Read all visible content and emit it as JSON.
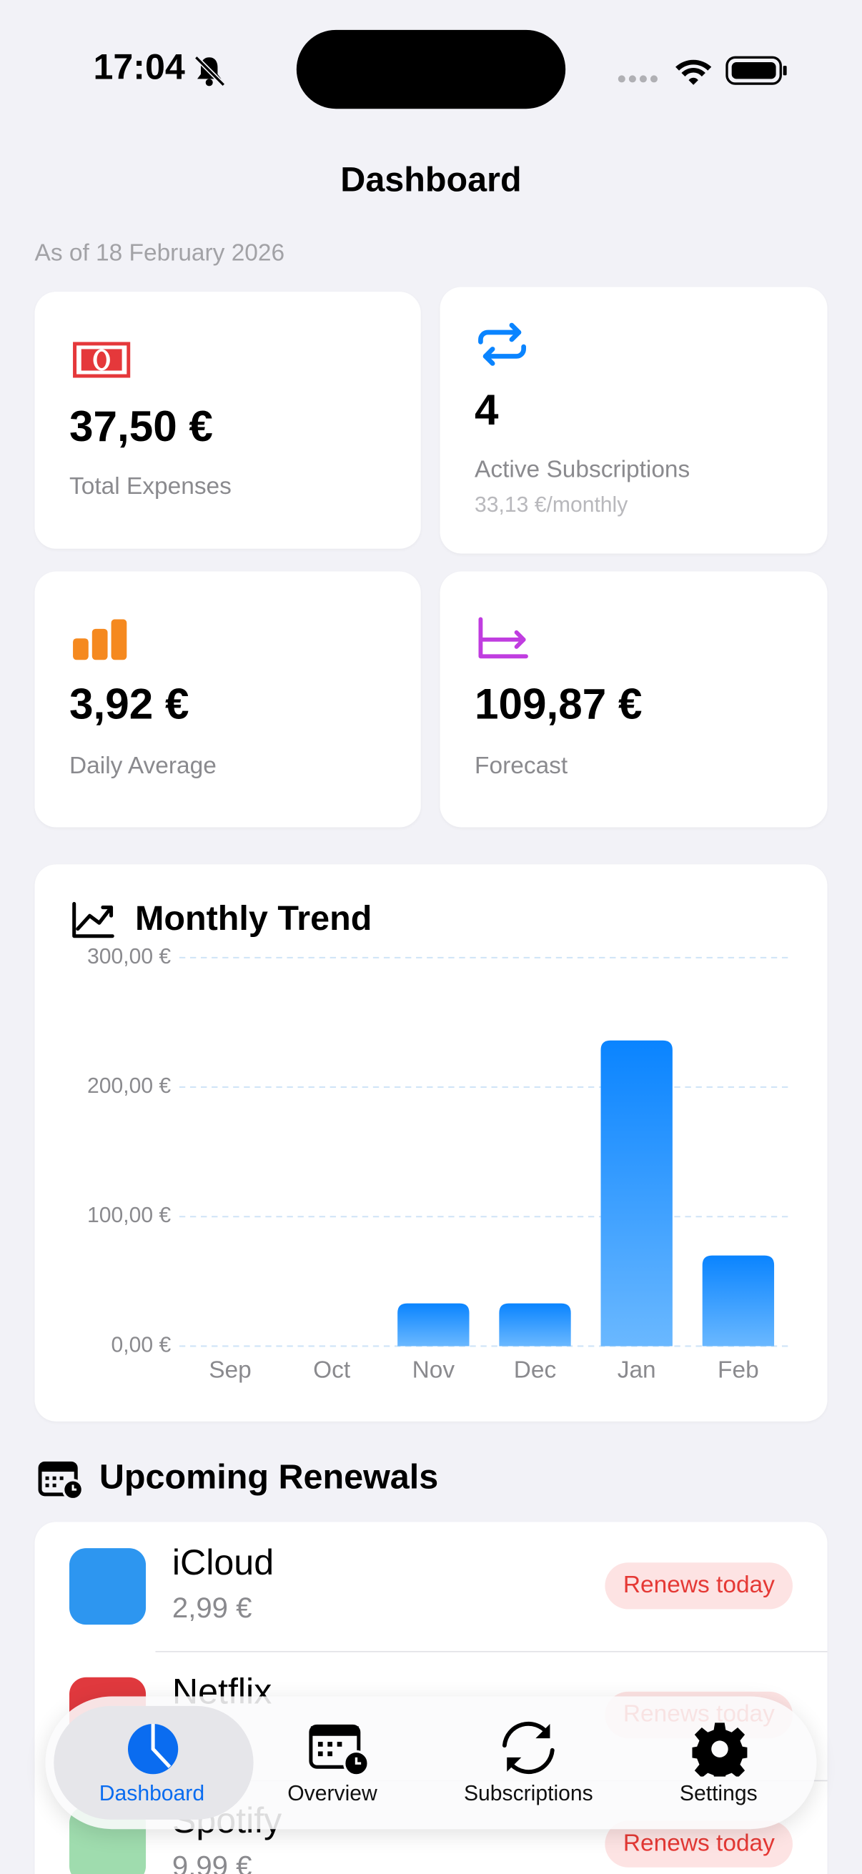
{
  "status_bar": {
    "time": "17:04"
  },
  "header": {
    "title": "Dashboard",
    "date": "As of 18 February 2026"
  },
  "stats": [
    {
      "value": "37,50 €",
      "label": "Total Expenses"
    },
    {
      "value": "4",
      "label": "Active Subscriptions",
      "note": "33,13 €/monthly"
    },
    {
      "value": "3,92 €",
      "label": "Daily Average"
    },
    {
      "value": "109,87 €",
      "label": "Forecast"
    }
  ],
  "chart_data": {
    "type": "bar",
    "title": "Monthly Trend",
    "categories": [
      "Sep",
      "Oct",
      "Nov",
      "Dec",
      "Jan",
      "Feb"
    ],
    "values": [
      0,
      0,
      33,
      33,
      236,
      70
    ],
    "color": "#0a84ff",
    "ylim": [
      0,
      300
    ],
    "yticks": [
      {
        "value": 0,
        "label": "0,00 €"
      },
      {
        "value": 100,
        "label": "100,00 €"
      },
      {
        "value": 200,
        "label": "200,00 €"
      },
      {
        "value": 300,
        "label": "300,00 €"
      }
    ],
    "grid": true
  },
  "renewals": {
    "title": "Upcoming Renewals",
    "items": [
      {
        "name": "iCloud",
        "price": "2,99 €",
        "status": "Renews today",
        "color": "#2d96f0"
      },
      {
        "name": "Netflix",
        "status": "Renews today",
        "color": "#e0393e"
      },
      {
        "name": "Spotify",
        "price": "9,99 €",
        "status": "Renews today",
        "color": "#9fdcae"
      }
    ]
  },
  "tabs": [
    {
      "label": "Dashboard",
      "selected": true
    },
    {
      "label": "Overview",
      "selected": false
    },
    {
      "label": "Subscriptions",
      "selected": false
    },
    {
      "label": "Settings",
      "selected": false
    }
  ]
}
